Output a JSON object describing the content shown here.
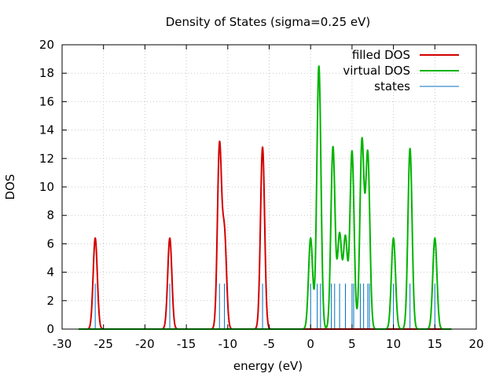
{
  "chart_data": {
    "type": "line",
    "title": "Density of States (sigma=0.25 eV)",
    "xlabel": "energy (eV)",
    "ylabel": "DOS",
    "xlim": [
      -30,
      20
    ],
    "ylim": [
      0,
      20
    ],
    "xticks": [
      -30,
      -25,
      -20,
      -15,
      -10,
      -5,
      0,
      5,
      10,
      15,
      20
    ],
    "yticks": [
      0,
      2,
      4,
      6,
      8,
      10,
      12,
      14,
      16,
      18,
      20
    ],
    "grid": true,
    "legend_position": "top-right",
    "sigma": 0.25,
    "x_range": [
      -28,
      17
    ],
    "series": [
      {
        "name": "filled DOS",
        "style": "line",
        "color": "#d40000",
        "peaks": [
          {
            "center": -26.0,
            "height": 6.4
          },
          {
            "center": -17.0,
            "height": 6.4
          },
          {
            "center": -11.0,
            "height": 12.8
          },
          {
            "center": -10.4,
            "height": 6.6
          },
          {
            "center": -5.8,
            "height": 12.8
          }
        ]
      },
      {
        "name": "virtual DOS",
        "style": "line",
        "color": "#00b400",
        "peaks": [
          {
            "center": 0.0,
            "height": 6.4
          },
          {
            "center": 1.0,
            "height": 18.5
          },
          {
            "center": 2.7,
            "height": 12.8
          },
          {
            "center": 3.5,
            "height": 6.6
          },
          {
            "center": 4.2,
            "height": 6.4
          },
          {
            "center": 5.0,
            "height": 12.5
          },
          {
            "center": 6.2,
            "height": 13.2
          },
          {
            "center": 6.9,
            "height": 12.3
          },
          {
            "center": 10.0,
            "height": 6.4
          },
          {
            "center": 12.0,
            "height": 12.7
          },
          {
            "center": 15.0,
            "height": 6.4
          }
        ]
      },
      {
        "name": "states",
        "style": "impulses",
        "color": "#0070c0",
        "x": [
          -26.0,
          -17.0,
          -11.0,
          -10.4,
          -5.8,
          0.0,
          0.8,
          1.2,
          2.5,
          2.9,
          3.5,
          4.2,
          5.0,
          5.2,
          6.0,
          6.4,
          6.9,
          7.1,
          10.0,
          12.0,
          15.0
        ],
        "y": [
          3.2,
          3.2,
          3.2,
          3.2,
          3.2,
          3.2,
          3.2,
          3.2,
          3.2,
          3.2,
          3.2,
          3.2,
          3.2,
          3.2,
          3.2,
          3.2,
          3.2,
          3.2,
          3.2,
          3.2,
          3.2
        ]
      }
    ]
  }
}
